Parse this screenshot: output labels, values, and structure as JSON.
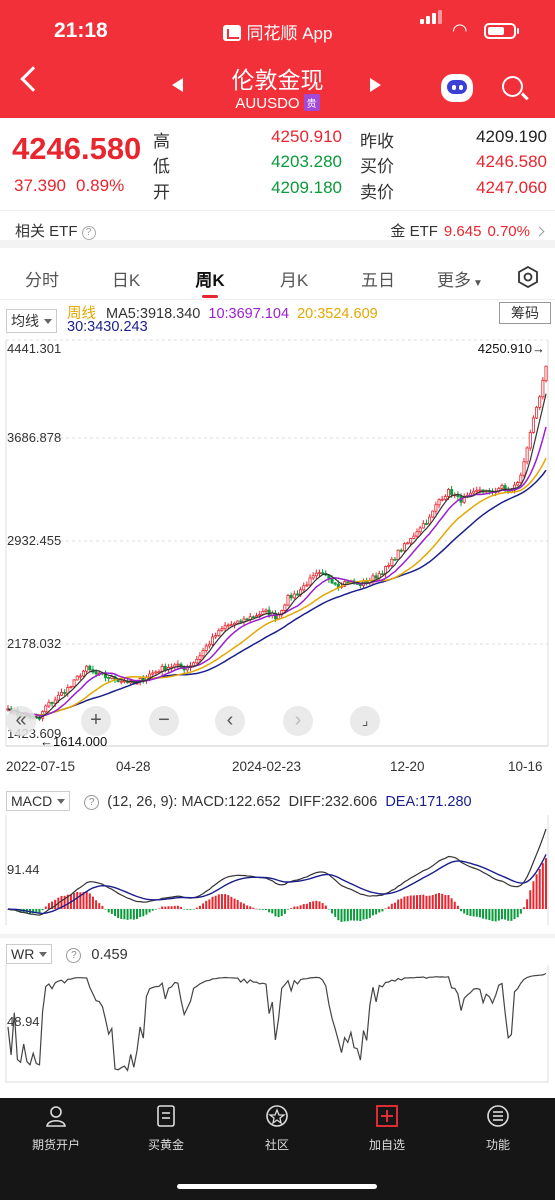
{
  "status": {
    "time": "21:18",
    "app": "同花顺 App"
  },
  "header": {
    "title": "伦敦金现",
    "code": "AUUSDO",
    "badge": "贵"
  },
  "quote": {
    "price": "4246.580",
    "change": "37.390",
    "change_pct": "0.89%",
    "high_label": "高",
    "high": "4250.910",
    "low_label": "低",
    "low": "4203.280",
    "open_label": "开",
    "open": "4209.180",
    "prev_close_label": "昨收",
    "prev_close": "4209.190",
    "bid_label": "买价",
    "bid": "4246.580",
    "ask_label": "卖价",
    "ask": "4247.060"
  },
  "etf": {
    "left_label": "相关 ETF",
    "right_label": "金 ETF",
    "right_value": "9.645",
    "right_pct": "0.70%"
  },
  "tabs": [
    "分时",
    "日K",
    "周K",
    "月K",
    "五日",
    "更多"
  ],
  "active_tab": "周K",
  "ma": {
    "dropdown": "均线",
    "period": "周线",
    "ma5": "MA5:3918.340",
    "ma10": "10:3697.104",
    "ma20": "20:3524.609",
    "ma30": "30:3430.243",
    "chip_button": "筹码"
  },
  "chart_data": [
    {
      "type": "candlestick",
      "title": "",
      "y_ticks": [
        "4441.301",
        "3686.878",
        "2932.455",
        "2178.032",
        "1423.609"
      ],
      "x_ticks": [
        "2022-07-15",
        "04-28",
        "2024-02-23",
        "12-20",
        "10-16"
      ],
      "high_marker": "4250.910→",
      "low_marker": "←1614.000",
      "ylim": [
        1423.609,
        4441.301
      ],
      "close_path": [
        [
          0,
          1700
        ],
        [
          4,
          1660
        ],
        [
          8,
          1640
        ],
        [
          10,
          1630
        ],
        [
          12,
          1614
        ],
        [
          15,
          1720
        ],
        [
          18,
          1760
        ],
        [
          22,
          1830
        ],
        [
          25,
          1870
        ],
        [
          28,
          1950
        ],
        [
          31,
          2000
        ],
        [
          34,
          1960
        ],
        [
          38,
          1940
        ],
        [
          42,
          1920
        ],
        [
          46,
          1910
        ],
        [
          50,
          1880
        ],
        [
          54,
          1940
        ],
        [
          58,
          1975
        ],
        [
          62,
          2010
        ],
        [
          66,
          2020
        ],
        [
          70,
          2000
        ],
        [
          74,
          2060
        ],
        [
          78,
          2160
        ],
        [
          82,
          2250
        ],
        [
          86,
          2320
        ],
        [
          90,
          2330
        ],
        [
          94,
          2370
        ],
        [
          98,
          2400
        ],
        [
          102,
          2420
        ],
        [
          106,
          2380
        ],
        [
          110,
          2520
        ],
        [
          114,
          2560
        ],
        [
          118,
          2640
        ],
        [
          122,
          2700
        ],
        [
          126,
          2680
        ],
        [
          130,
          2620
        ],
        [
          134,
          2650
        ],
        [
          138,
          2620
        ],
        [
          142,
          2650
        ],
        [
          146,
          2700
        ],
        [
          150,
          2760
        ],
        [
          154,
          2870
        ],
        [
          158,
          2940
        ],
        [
          162,
          3050
        ],
        [
          166,
          3110
        ],
        [
          170,
          3260
        ],
        [
          174,
          3320
        ],
        [
          178,
          3250
        ],
        [
          182,
          3280
        ],
        [
          186,
          3330
        ],
        [
          190,
          3300
        ],
        [
          194,
          3350
        ],
        [
          198,
          3310
        ],
        [
          202,
          3420
        ],
        [
          204,
          3600
        ],
        [
          206,
          3780
        ],
        [
          208,
          3900
        ],
        [
          210,
          4050
        ],
        [
          212,
          4246
        ]
      ]
    },
    {
      "type": "line",
      "title": "",
      "indicator": "MACD",
      "params": "(12, 26, 9):",
      "series": [
        {
          "name": "MACD",
          "value": "MACD:122.652",
          "color": "#333333"
        },
        {
          "name": "DIFF",
          "value": "DIFF:232.606",
          "color": "#333333"
        },
        {
          "name": "DEA",
          "value": "DEA:171.280",
          "color": "#1b1f8c"
        }
      ],
      "y_ticks": [
        "91.44"
      ]
    },
    {
      "type": "line",
      "title": "",
      "indicator": "WR",
      "value": "0.459",
      "y_ticks": [
        "48.94"
      ]
    }
  ],
  "bottom_nav": [
    {
      "label": "期货开户",
      "icon": "user-icon"
    },
    {
      "label": "买黄金",
      "icon": "document-icon"
    },
    {
      "label": "社区",
      "icon": "community-icon"
    },
    {
      "label": "加自选",
      "icon": "add-favorite-icon"
    },
    {
      "label": "功能",
      "icon": "menu-icon"
    }
  ],
  "colors": {
    "brand": "#f2303a",
    "up": "#e8262f",
    "down": "#0a9a3a",
    "ma5": "#333333",
    "ma10": "#9b1fd0",
    "ma20": "#e3a800",
    "ma30": "#1b1f8c"
  }
}
